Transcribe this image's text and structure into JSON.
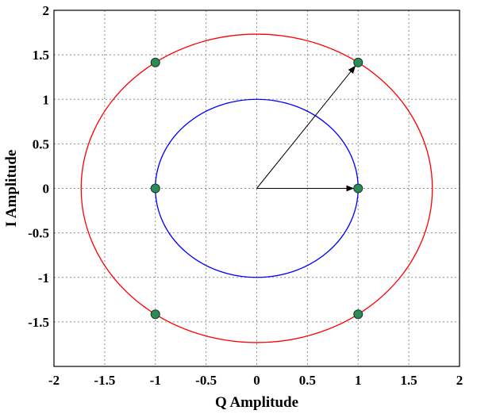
{
  "chart_data": {
    "type": "scatter",
    "title": "",
    "xlabel": "Q Amplitude",
    "ylabel": "I Amplitude",
    "xlim": [
      -2,
      2
    ],
    "ylim": [
      -2,
      2
    ],
    "x_ticks": [
      -2,
      -1.5,
      -1,
      -0.5,
      0,
      0.5,
      1,
      1.5,
      2
    ],
    "y_ticks": [
      -1.5,
      -1,
      -0.5,
      0,
      0.5,
      1,
      1.5,
      2
    ],
    "grid": true,
    "circles": [
      {
        "radius": 1.0,
        "color": "#0000ff"
      },
      {
        "radius": 1.732,
        "color": "#ff0000"
      }
    ],
    "points": {
      "color": "#2e8b57",
      "x": [
        -1,
        -1,
        -1,
        1,
        1,
        1
      ],
      "y": [
        1.414,
        0,
        -1.414,
        1.414,
        0,
        -1.414
      ]
    },
    "arrows": [
      {
        "from": [
          0,
          0
        ],
        "to": [
          1,
          1.414
        ]
      },
      {
        "from": [
          0,
          0
        ],
        "to": [
          1,
          0
        ]
      }
    ]
  }
}
